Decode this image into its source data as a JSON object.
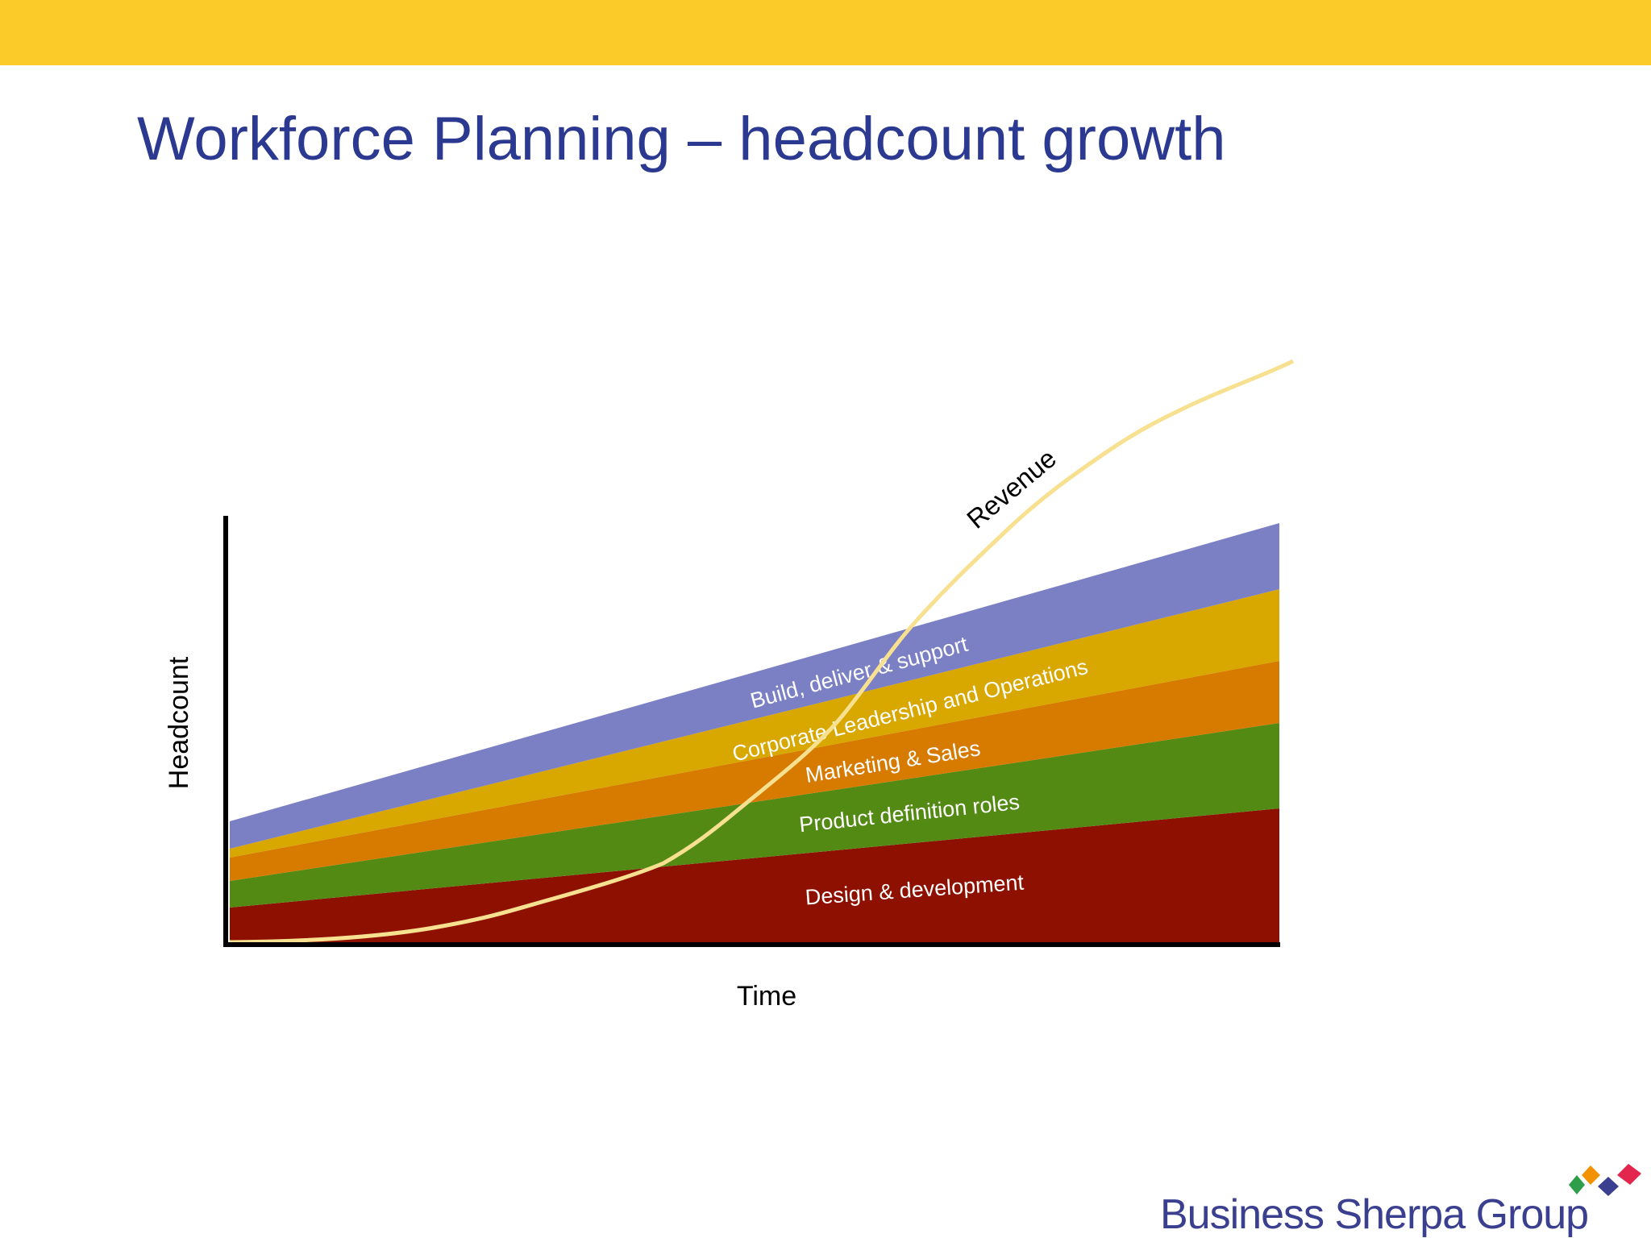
{
  "title": "Workforce Planning – headcount growth",
  "axes": {
    "y_label": "Headcount",
    "x_label": "Time"
  },
  "bands": [
    "Design & development",
    "Product  definition roles",
    "Marketing & Sales",
    "Corporate Leadership and Operations",
    "Build, deliver & support"
  ],
  "curve_label": "Revenue",
  "footer": {
    "brand": "Business Sherpa Group"
  }
}
